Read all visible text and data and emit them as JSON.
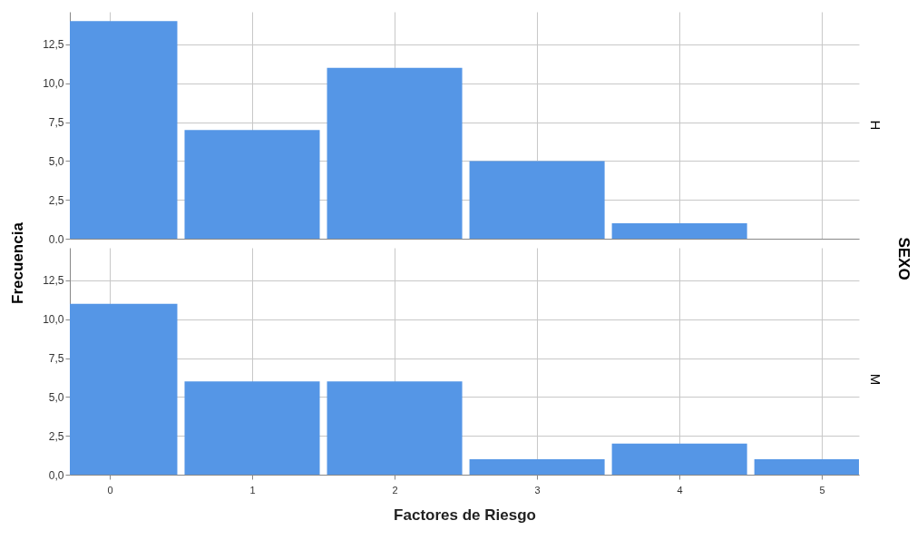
{
  "chart_data": [
    {
      "type": "histogram",
      "ylabel": "Frecuencia",
      "annotations": [
        "H",
        "SEXO"
      ],
      "bins": [
        -0.5,
        0.5,
        1.5,
        2.5,
        3.5,
        4.5,
        5.5
      ],
      "values": [
        14,
        7,
        11,
        5,
        1,
        0
      ],
      "color": "#5596e6",
      "xlim": [
        -0.28,
        5.26
      ],
      "xticks": [
        0,
        1,
        2,
        3,
        4,
        5
      ],
      "ylim": [
        0,
        14.6
      ],
      "yticks": [
        {
          "value": 0,
          "label": "0,0"
        },
        {
          "value": 2.5,
          "label": "2,5"
        },
        {
          "value": 5,
          "label": "5,0"
        },
        {
          "value": 7.5,
          "label": "7,5"
        },
        {
          "value": 10,
          "label": "10,0"
        },
        {
          "value": 12.5,
          "label": "12,5"
        }
      ],
      "grid": true,
      "tick_labels": "y"
    },
    {
      "type": "histogram",
      "annotations": [
        "M"
      ],
      "xlabel": "Factores de Riesgo",
      "bins": [
        -0.5,
        0.5,
        1.5,
        2.5,
        3.5,
        4.5,
        5.5
      ],
      "values": [
        11,
        6,
        6,
        1,
        2,
        1
      ],
      "color": "#5596e6",
      "xlim": [
        -0.28,
        5.26
      ],
      "xticks": [
        0,
        1,
        2,
        3,
        4,
        5
      ],
      "ylim": [
        0,
        14.6
      ],
      "yticks": [
        {
          "value": 0,
          "label": "0,0"
        },
        {
          "value": 2.5,
          "label": "2,5"
        },
        {
          "value": 5,
          "label": "5,0"
        },
        {
          "value": 7.5,
          "label": "7,5"
        },
        {
          "value": 10,
          "label": "10,0"
        },
        {
          "value": 12.5,
          "label": "12,5"
        }
      ],
      "grid": true
    }
  ]
}
